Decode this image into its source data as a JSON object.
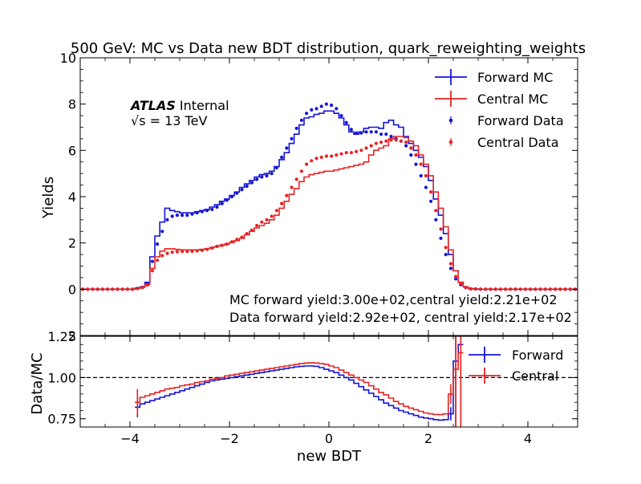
{
  "colors": {
    "forward": "#1414d6",
    "central": "#e62323",
    "axis": "#000000",
    "ref_line": "#000000"
  },
  "chart_data": [
    {
      "type": "line",
      "panel": "main",
      "title": "500 GeV: MC vs Data new BDT distribution, quark_reweighting_weights",
      "ylabel": "Yields",
      "xlim": [
        -5,
        5
      ],
      "ylim": [
        -2,
        10
      ],
      "xticks": [
        -4,
        -2,
        0,
        2,
        4
      ],
      "yticks": [
        0,
        2,
        4,
        6,
        8,
        10
      ],
      "ytick_labels": [
        "0",
        "2",
        "4",
        "6",
        "8",
        "10"
      ],
      "bottom_label": "2",
      "legend": {
        "placement": "top-right",
        "entries": [
          "Forward MC",
          "Central MC",
          "Forward Data",
          "Central Data"
        ]
      },
      "experiment_label": {
        "bold": "ATLAS",
        "normal": "Internal",
        "energy": "√s = 13 TeV"
      },
      "annotations": [
        "MC forward yield:3.00e+02,central yield:2.21e+02",
        "Data forward yield:2.92e+02, central yield:2.17e+02"
      ],
      "bin_edges": [
        -5.0,
        -4.9,
        -4.8,
        -4.7,
        -4.6,
        -4.5,
        -4.4,
        -4.3,
        -4.2,
        -4.1,
        -4.0,
        -3.9,
        -3.8,
        -3.7,
        -3.6,
        -3.5,
        -3.4,
        -3.3,
        -3.2,
        -3.1,
        -3.0,
        -2.9,
        -2.8,
        -2.7,
        -2.6,
        -2.5,
        -2.4,
        -2.3,
        -2.2,
        -2.1,
        -2.0,
        -1.9,
        -1.8,
        -1.7,
        -1.6,
        -1.5,
        -1.4,
        -1.3,
        -1.2,
        -1.1,
        -1.0,
        -0.9,
        -0.8,
        -0.7,
        -0.6,
        -0.5,
        -0.4,
        -0.3,
        -0.2,
        -0.1,
        0.0,
        0.1,
        0.2,
        0.3,
        0.4,
        0.5,
        0.6,
        0.7,
        0.8,
        0.9,
        1.0,
        1.1,
        1.2,
        1.3,
        1.4,
        1.5,
        1.6,
        1.7,
        1.8,
        1.9,
        2.0,
        2.1,
        2.2,
        2.3,
        2.4,
        2.5,
        2.6,
        2.7,
        2.8,
        2.9,
        3.0,
        3.1,
        3.2,
        3.3,
        3.4,
        3.5,
        3.6,
        3.7,
        3.8,
        3.9,
        4.0,
        4.1,
        4.2,
        4.3,
        4.4,
        4.5,
        4.6,
        4.7,
        4.8,
        4.9,
        5.0
      ],
      "series": [
        {
          "name": "Forward MC",
          "style": "step",
          "values": [
            0,
            0,
            0,
            0,
            0,
            0,
            0,
            0,
            0,
            0,
            0,
            0.05,
            0.1,
            0.3,
            1.4,
            2.3,
            2.9,
            3.5,
            3.4,
            3.35,
            3.3,
            3.3,
            3.3,
            3.35,
            3.4,
            3.45,
            3.55,
            3.65,
            3.8,
            3.9,
            4.05,
            4.2,
            4.4,
            4.55,
            4.7,
            4.85,
            4.95,
            5.0,
            5.1,
            5.3,
            5.6,
            5.9,
            6.3,
            6.7,
            7.1,
            7.4,
            7.45,
            7.55,
            7.6,
            7.7,
            7.7,
            7.6,
            7.4,
            7.1,
            6.8,
            6.7,
            6.8,
            6.95,
            7.0,
            7.0,
            6.95,
            7.2,
            7.3,
            7.1,
            7.0,
            6.6,
            6.3,
            6.0,
            5.7,
            5.3,
            4.7,
            3.9,
            3.2,
            2.4,
            1.5,
            0.8,
            0.3,
            0.1,
            0.03,
            0.01,
            0,
            0,
            0,
            0,
            0,
            0,
            0,
            0,
            0,
            0,
            0,
            0,
            0,
            0,
            0,
            0,
            0,
            0,
            0,
            0
          ]
        },
        {
          "name": "Central MC",
          "style": "step",
          "values": [
            0,
            0,
            0,
            0,
            0,
            0,
            0,
            0,
            0,
            0,
            0,
            0.03,
            0.08,
            0.2,
            0.9,
            1.4,
            1.65,
            1.75,
            1.75,
            1.72,
            1.7,
            1.7,
            1.7,
            1.7,
            1.72,
            1.75,
            1.8,
            1.85,
            1.9,
            1.95,
            2.02,
            2.1,
            2.2,
            2.35,
            2.5,
            2.65,
            2.75,
            2.85,
            3.0,
            3.2,
            3.5,
            3.8,
            4.1,
            4.35,
            4.65,
            4.85,
            4.95,
            5.0,
            5.05,
            5.1,
            5.1,
            5.15,
            5.2,
            5.25,
            5.3,
            5.35,
            5.4,
            5.5,
            5.8,
            6.0,
            6.1,
            6.2,
            6.5,
            6.6,
            6.6,
            6.55,
            6.4,
            6.2,
            5.8,
            5.4,
            4.9,
            4.2,
            3.5,
            2.7,
            1.7,
            0.8,
            0.3,
            0.1,
            0.03,
            0.01,
            0,
            0,
            0,
            0,
            0,
            0,
            0,
            0,
            0,
            0,
            0,
            0,
            0,
            0,
            0,
            0,
            0,
            0,
            0,
            0
          ]
        },
        {
          "name": "Forward Data",
          "style": "points",
          "values": [
            0,
            0,
            0,
            0,
            0,
            0,
            0,
            0,
            0,
            0,
            0,
            0.04,
            0.08,
            0.25,
            1.2,
            1.95,
            2.5,
            3.0,
            3.15,
            3.2,
            3.2,
            3.2,
            3.25,
            3.3,
            3.35,
            3.4,
            3.45,
            3.55,
            3.7,
            3.85,
            4.0,
            4.15,
            4.3,
            4.45,
            4.6,
            4.75,
            4.85,
            4.9,
            5.0,
            5.25,
            5.7,
            6.1,
            6.5,
            6.95,
            7.3,
            7.6,
            7.75,
            7.8,
            7.9,
            8.0,
            7.95,
            7.8,
            7.5,
            7.2,
            6.9,
            6.75,
            6.75,
            6.8,
            6.8,
            6.8,
            6.7,
            6.7,
            6.6,
            6.5,
            6.4,
            6.2,
            5.8,
            5.4,
            4.9,
            4.4,
            3.8,
            3.0,
            2.2,
            1.5,
            0.9,
            0.45,
            0.2,
            0.07,
            0.02,
            0.01,
            0,
            0,
            0,
            0,
            0,
            0,
            0,
            0,
            0,
            0,
            0,
            0,
            0,
            0,
            0,
            0,
            0,
            0,
            0,
            0
          ]
        },
        {
          "name": "Central Data",
          "style": "points",
          "values": [
            0,
            0,
            0,
            0,
            0,
            0,
            0,
            0,
            0,
            0,
            0,
            0.03,
            0.07,
            0.18,
            0.8,
            1.25,
            1.45,
            1.55,
            1.6,
            1.62,
            1.63,
            1.63,
            1.64,
            1.66,
            1.68,
            1.72,
            1.78,
            1.85,
            1.9,
            1.95,
            2.05,
            2.15,
            2.25,
            2.4,
            2.55,
            2.75,
            2.9,
            3.0,
            3.15,
            3.4,
            3.7,
            4.05,
            4.4,
            4.75,
            5.1,
            5.4,
            5.55,
            5.65,
            5.7,
            5.75,
            5.75,
            5.8,
            5.85,
            5.9,
            5.9,
            5.95,
            6.0,
            6.1,
            6.2,
            6.3,
            6.35,
            6.4,
            6.45,
            6.45,
            6.4,
            6.35,
            6.1,
            5.8,
            5.4,
            4.9,
            4.2,
            3.4,
            2.6,
            1.8,
            1.1,
            0.55,
            0.25,
            0.08,
            0.02,
            0.01,
            0,
            0,
            0,
            0,
            0,
            0,
            0,
            0,
            0,
            0,
            0,
            0,
            0,
            0,
            0,
            0,
            0,
            0,
            0,
            0
          ]
        }
      ]
    },
    {
      "type": "line",
      "panel": "ratio",
      "xlabel": "new BDT",
      "ylabel": "Data/MC",
      "xlim": [
        -5,
        5
      ],
      "ylim": [
        0.7,
        1.25
      ],
      "xticks": [
        -4,
        -2,
        0,
        2,
        4
      ],
      "xtick_labels": [
        "−4",
        "−2",
        "0",
        "2",
        "4"
      ],
      "yticks": [
        0.75,
        1.0,
        1.25
      ],
      "ytick_labels": [
        "0.75",
        "1.00",
        "1.25"
      ],
      "reference_line": 1.0,
      "legend": {
        "placement": "top-right",
        "entries": [
          "Forward",
          "Central"
        ]
      },
      "x_start": -3.9,
      "bin_width": 0.1,
      "series": [
        {
          "name": "Forward",
          "values": [
            0.82,
            0.84,
            0.85,
            0.86,
            0.87,
            0.88,
            0.89,
            0.9,
            0.91,
            0.92,
            0.93,
            0.94,
            0.95,
            0.96,
            0.97,
            0.98,
            0.985,
            0.99,
            0.995,
            1.0,
            1.005,
            1.01,
            1.015,
            1.02,
            1.025,
            1.03,
            1.035,
            1.04,
            1.045,
            1.05,
            1.055,
            1.06,
            1.065,
            1.068,
            1.07,
            1.07,
            1.068,
            1.06,
            1.05,
            1.04,
            1.03,
            1.015,
            1.0,
            0.985,
            0.965,
            0.945,
            0.925,
            0.905,
            0.885,
            0.865,
            0.845,
            0.83,
            0.815,
            0.8,
            0.79,
            0.78,
            0.77,
            0.76,
            0.755,
            0.75,
            0.745,
            0.742,
            0.745,
            0.78,
            1.1,
            1.2
          ],
          "errors": [
            0.06,
            0.02,
            0.01,
            0.01,
            0.01,
            0.01,
            0.01,
            0.01,
            0.01,
            0.01,
            0.01,
            0.01,
            0.01,
            0.01,
            0.01,
            0.01,
            0.01,
            0.01,
            0.01,
            0.01,
            0.01,
            0.01,
            0.01,
            0.01,
            0.01,
            0.01,
            0.01,
            0.01,
            0.01,
            0.01,
            0.01,
            0.01,
            0.01,
            0.01,
            0.01,
            0.01,
            0.01,
            0.01,
            0.01,
            0.01,
            0.01,
            0.01,
            0.01,
            0.01,
            0.01,
            0.01,
            0.01,
            0.01,
            0.01,
            0.01,
            0.01,
            0.01,
            0.01,
            0.01,
            0.01,
            0.01,
            0.01,
            0.01,
            0.01,
            0.01,
            0.01,
            0.01,
            0.02,
            0.04,
            0.6,
            0.6
          ]
        },
        {
          "name": "Central",
          "values": [
            0.85,
            0.88,
            0.89,
            0.9,
            0.91,
            0.92,
            0.93,
            0.935,
            0.94,
            0.95,
            0.955,
            0.96,
            0.97,
            0.975,
            0.98,
            0.99,
            0.995,
            1.0,
            1.01,
            1.015,
            1.02,
            1.025,
            1.03,
            1.035,
            1.04,
            1.045,
            1.05,
            1.055,
            1.06,
            1.065,
            1.07,
            1.075,
            1.08,
            1.085,
            1.088,
            1.09,
            1.088,
            1.085,
            1.08,
            1.07,
            1.06,
            1.045,
            1.03,
            1.015,
            1.0,
            0.985,
            0.97,
            0.95,
            0.93,
            0.91,
            0.895,
            0.875,
            0.855,
            0.84,
            0.825,
            0.815,
            0.805,
            0.795,
            0.785,
            0.78,
            0.776,
            0.775,
            0.78,
            0.9,
            1.05,
            1.15
          ],
          "errors": [
            0.08,
            0.02,
            0.01,
            0.01,
            0.01,
            0.01,
            0.01,
            0.01,
            0.01,
            0.01,
            0.01,
            0.01,
            0.01,
            0.01,
            0.01,
            0.01,
            0.01,
            0.01,
            0.01,
            0.01,
            0.01,
            0.01,
            0.01,
            0.01,
            0.01,
            0.01,
            0.01,
            0.01,
            0.01,
            0.01,
            0.01,
            0.01,
            0.01,
            0.01,
            0.01,
            0.01,
            0.01,
            0.01,
            0.01,
            0.01,
            0.01,
            0.01,
            0.01,
            0.01,
            0.01,
            0.01,
            0.01,
            0.01,
            0.01,
            0.01,
            0.01,
            0.01,
            0.01,
            0.01,
            0.01,
            0.01,
            0.01,
            0.01,
            0.01,
            0.01,
            0.01,
            0.01,
            0.02,
            0.06,
            0.6,
            0.6
          ]
        }
      ]
    }
  ]
}
